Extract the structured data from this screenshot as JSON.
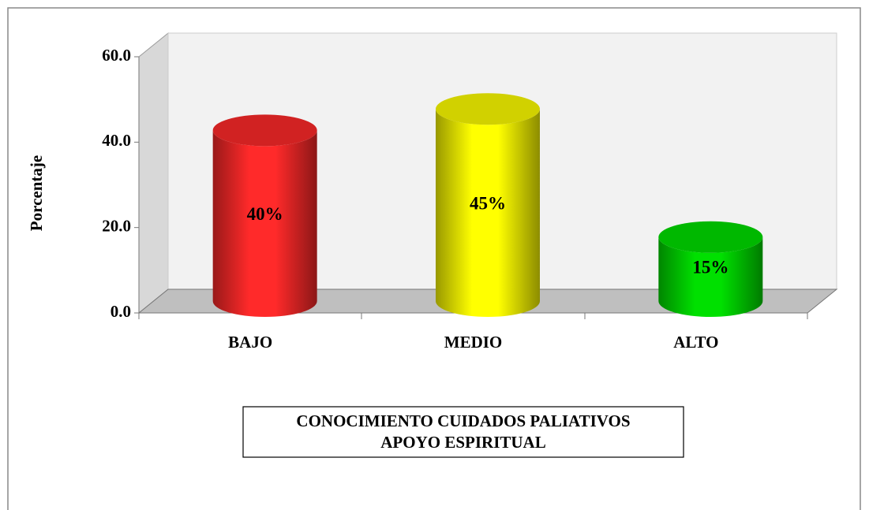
{
  "chart_data": {
    "type": "bar3d",
    "title": [
      "CONOCIMIENTO CUIDADOS PALIATIVOS",
      "APOYO ESPIRITUAL"
    ],
    "y_axis_label": "Porcentaje",
    "categories": [
      "BAJO",
      "MEDIO",
      "ALTO"
    ],
    "values": [
      40,
      45,
      15
    ],
    "value_labels": [
      "40%",
      "45%",
      "15%"
    ],
    "colors": [
      "#ff2a2a",
      "#ffff00",
      "#00e000"
    ],
    "ylim": [
      0,
      60
    ],
    "yticks": [
      {
        "value": 0,
        "label": "0.0"
      },
      {
        "value": 20,
        "label": "20.0"
      },
      {
        "value": 40,
        "label": "40.0"
      },
      {
        "value": 60,
        "label": "60.0"
      }
    ]
  }
}
